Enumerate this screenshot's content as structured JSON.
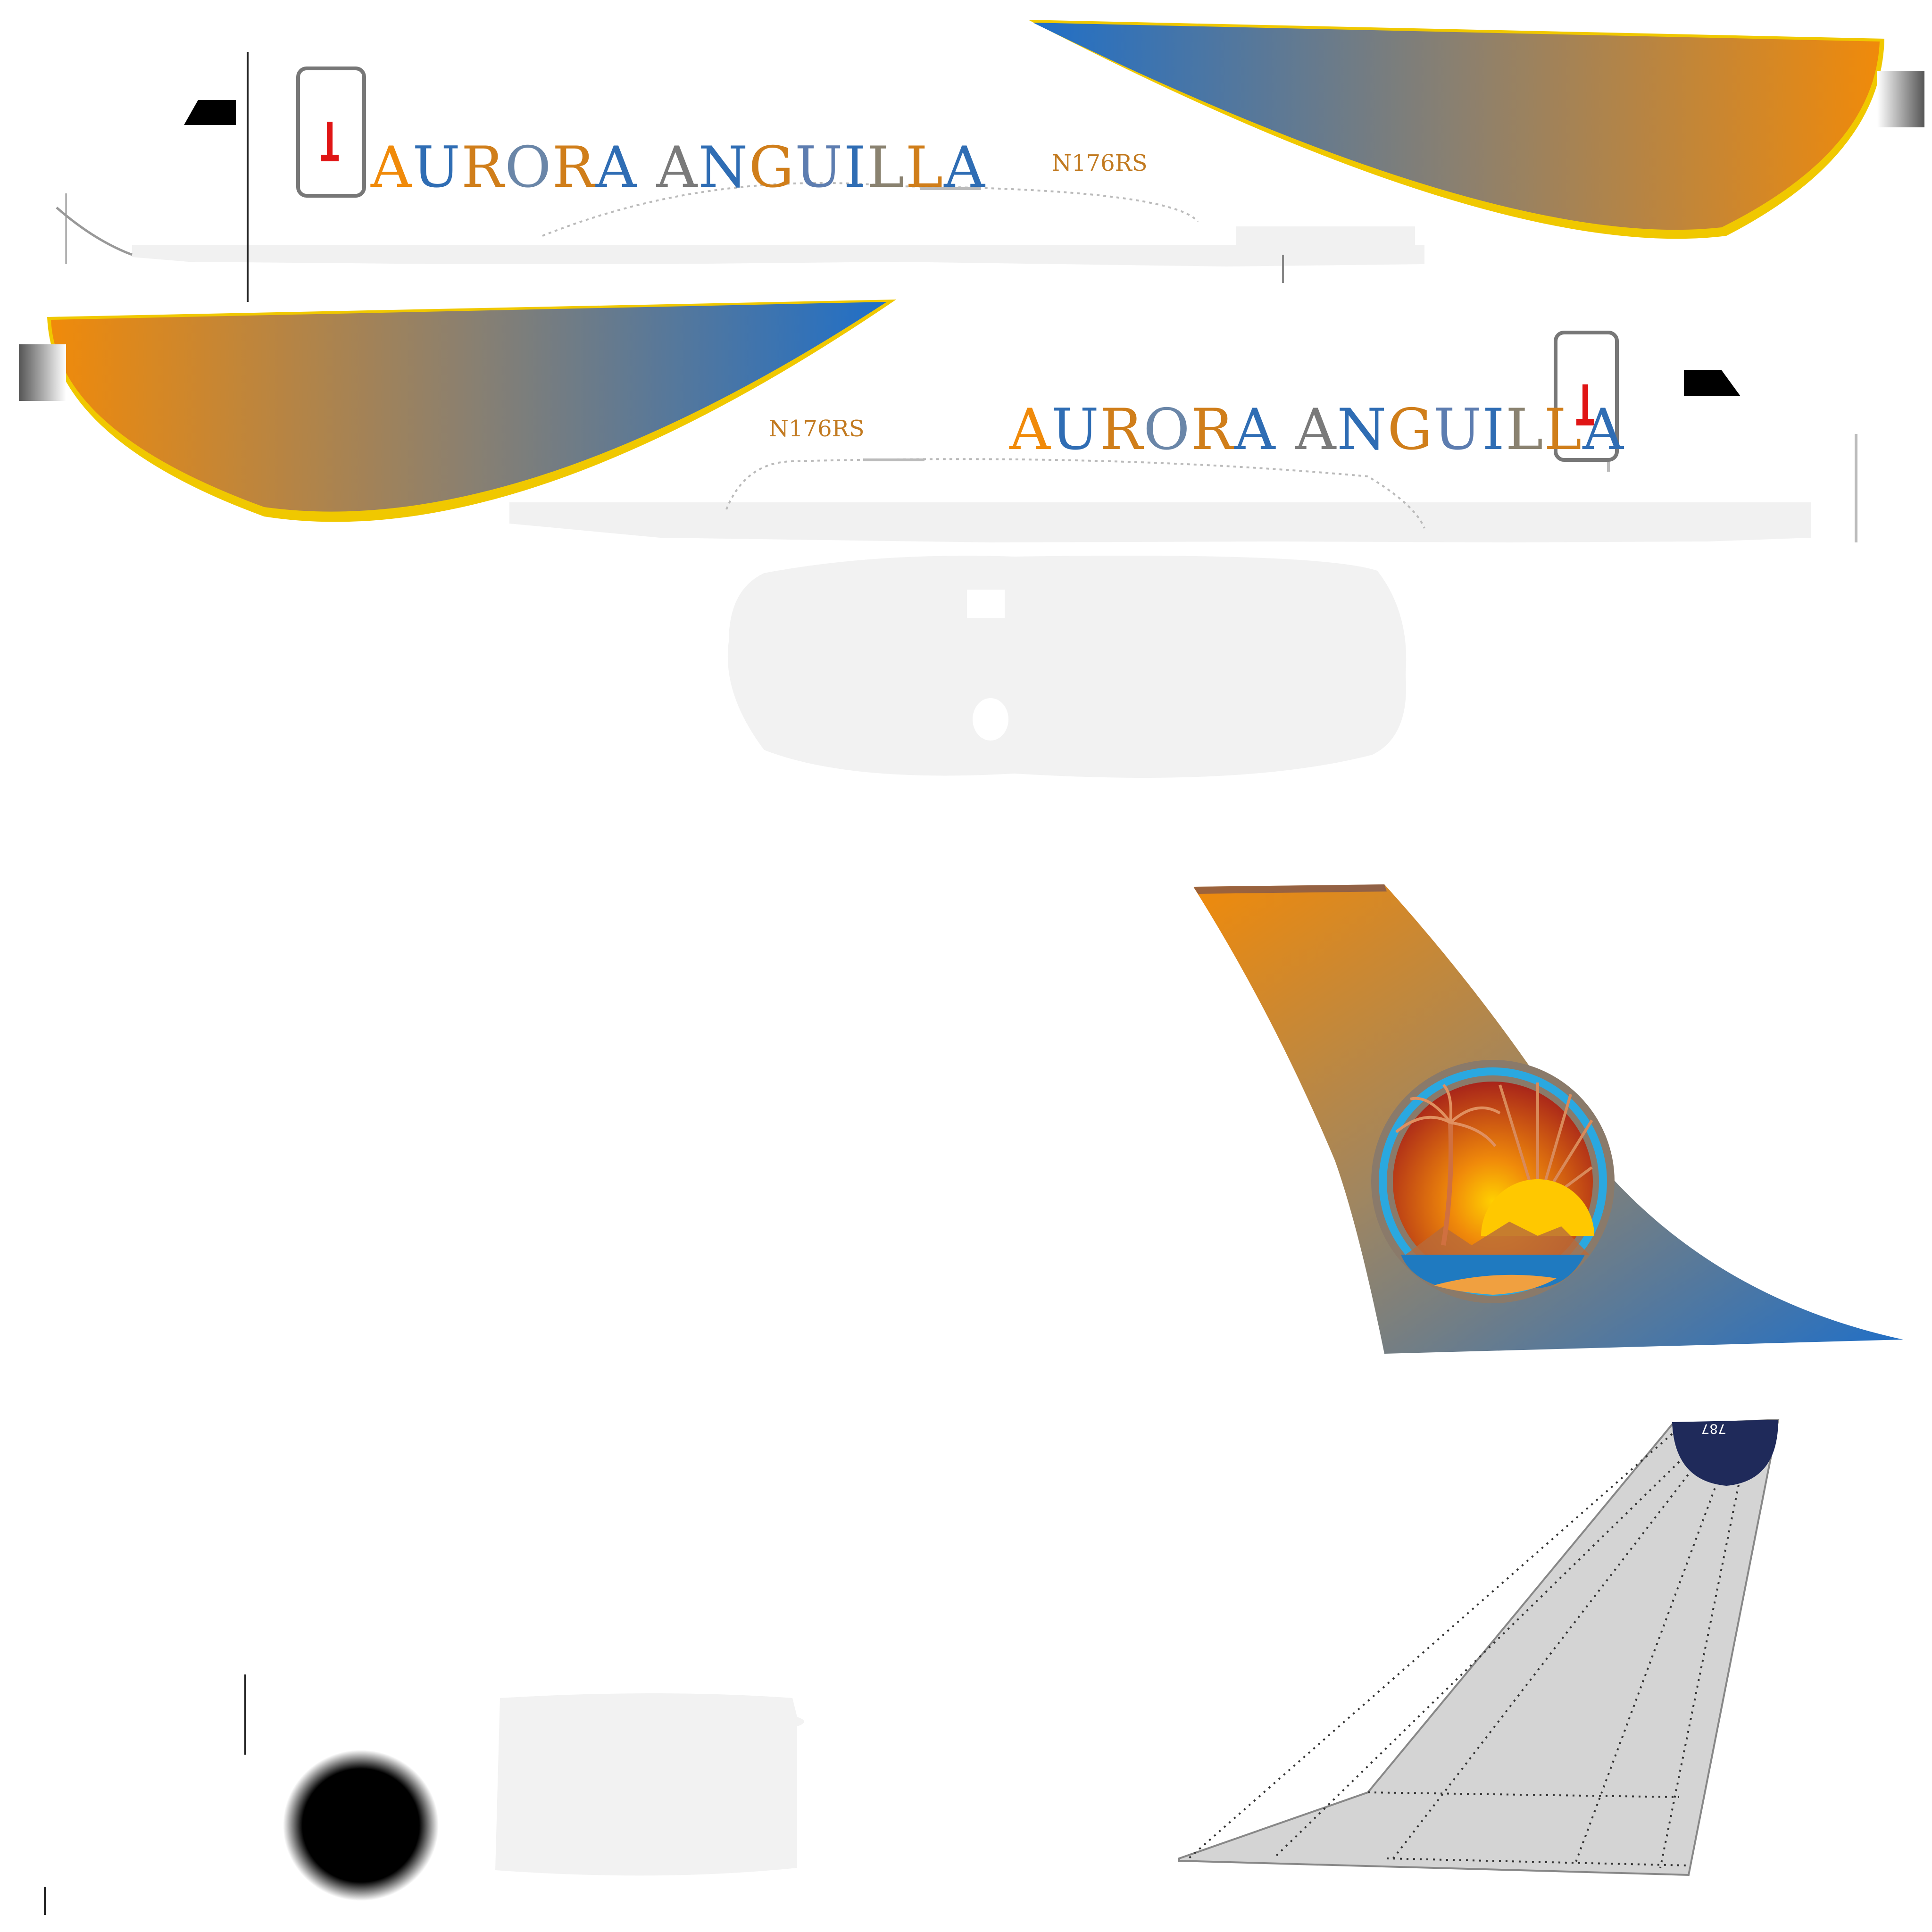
{
  "livery": {
    "airline_name": "AURORA ANGUILLA",
    "registration": "N176RS",
    "fin_tip_text": "787"
  },
  "colors": {
    "orange": "#f08a0a",
    "blue": "#1f6fc8",
    "gold_trim": "#f0c800",
    "light_grey": "#f1f1f1",
    "panel_grey": "#d4d4d4",
    "navy": "#1f2a5a",
    "red_mark": "#e01515"
  },
  "letter_colors": [
    "#f08a0a",
    "#2f6db4",
    "#d07e1a",
    "#6a86a8",
    "#d07e1a",
    "#2f6db4",
    "#d07e1a",
    "#7a7a7a",
    "#2f6db4",
    "#d07e1a",
    "#5d7db0",
    "#2f6db4",
    "#8a8270",
    "#d07e1a",
    "#2f6db4"
  ],
  "icons": [
    "fuselage-left-side",
    "fuselage-right-side",
    "tail-fin-livery",
    "tail-fin-template",
    "sunset-palm-logo-icon",
    "engine-nacelle"
  ]
}
